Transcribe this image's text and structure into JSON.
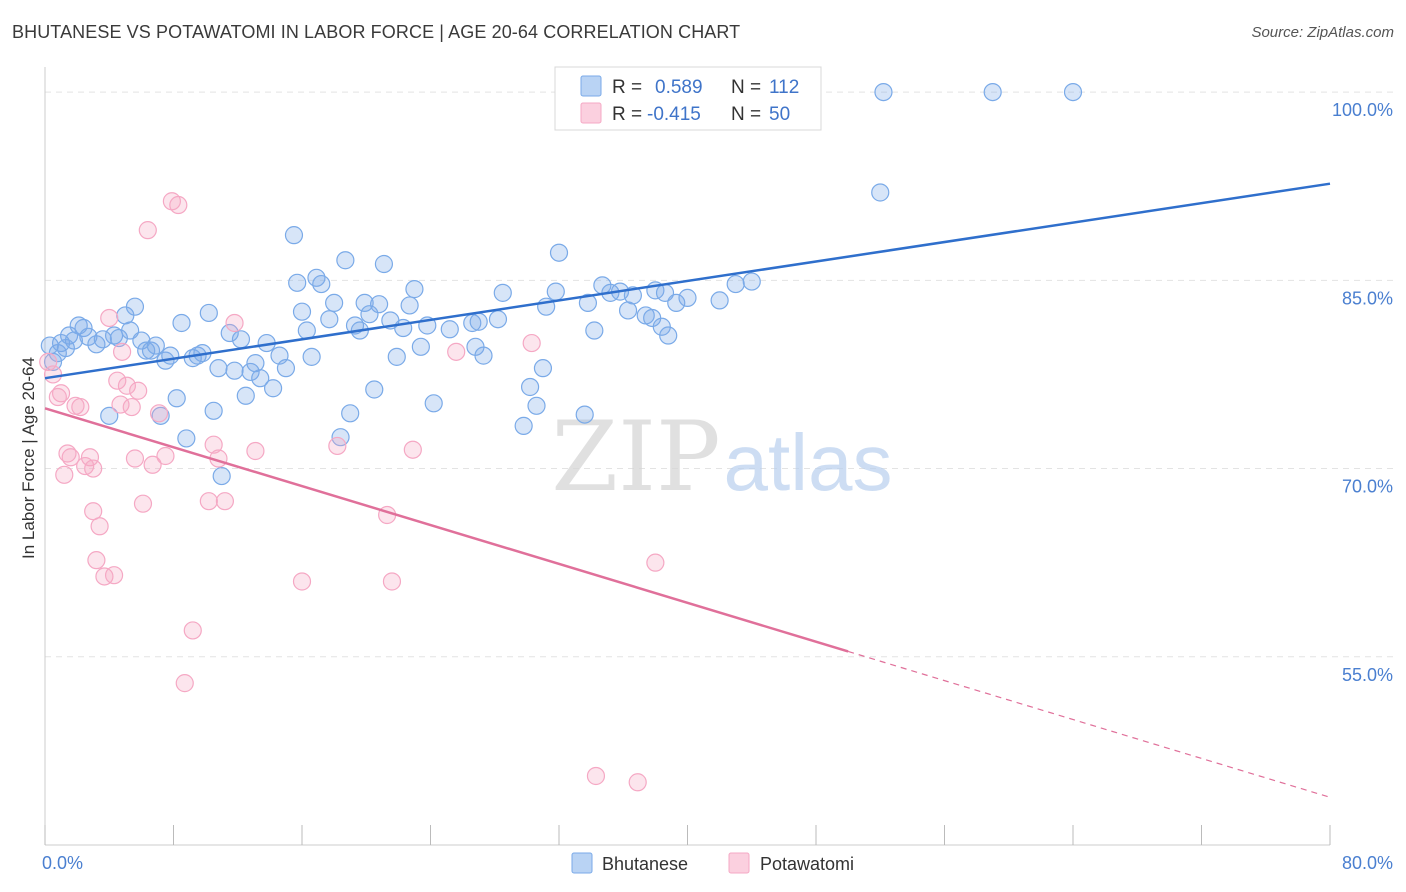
{
  "title": "BHUTANESE VS POTAWATOMI IN LABOR FORCE | AGE 20-64 CORRELATION CHART",
  "source": "Source: ZipAtlas.com",
  "watermark": {
    "zip": "ZIP",
    "atlas": "atlas"
  },
  "chart_data": {
    "type": "scatter",
    "xlabel": "",
    "ylabel": "In Labor Force | Age 20-64",
    "xlim": [
      0,
      80
    ],
    "ylim": [
      40,
      102
    ],
    "x_tick_labels": [
      "0.0%",
      "80.0%"
    ],
    "y_ticks": [
      100,
      85,
      70,
      55
    ],
    "y_tick_labels": [
      "100.0%",
      "85.0%",
      "70.0%",
      "55.0%"
    ],
    "grid": true,
    "legend_position": "top-center",
    "legend": [
      {
        "r_label": "R =",
        "r_value": "0.589",
        "n_label": "N =",
        "n_value": "112"
      },
      {
        "r_label": "R =",
        "r_value": "-0.415",
        "n_label": "N =",
        "n_value": "50"
      }
    ],
    "series": [
      {
        "name": "Bhutanese",
        "color": "#7aaae8",
        "line_color": "#2f6fcc",
        "trend": {
          "x0": 0,
          "y0": 77.2,
          "x1": 80,
          "y1": 92.7,
          "solid_until": 80
        },
        "points": [
          [
            0.3,
            79.8
          ],
          [
            0.5,
            78.5
          ],
          [
            0.8,
            79.2
          ],
          [
            1.0,
            80.0
          ],
          [
            1.3,
            79.6
          ],
          [
            1.5,
            80.6
          ],
          [
            1.8,
            80.2
          ],
          [
            2.1,
            81.4
          ],
          [
            2.4,
            81.2
          ],
          [
            2.7,
            80.5
          ],
          [
            3.2,
            79.9
          ],
          [
            3.6,
            80.3
          ],
          [
            4.0,
            74.2
          ],
          [
            4.3,
            80.6
          ],
          [
            4.6,
            80.4
          ],
          [
            5.0,
            82.2
          ],
          [
            5.3,
            81.0
          ],
          [
            5.6,
            82.9
          ],
          [
            6.0,
            80.2
          ],
          [
            6.3,
            79.4
          ],
          [
            6.6,
            79.4
          ],
          [
            6.9,
            79.8
          ],
          [
            7.2,
            74.2
          ],
          [
            7.5,
            78.6
          ],
          [
            7.8,
            79.0
          ],
          [
            8.2,
            75.6
          ],
          [
            8.5,
            81.6
          ],
          [
            8.8,
            72.4
          ],
          [
            9.2,
            78.8
          ],
          [
            9.5,
            79.0
          ],
          [
            9.8,
            79.2
          ],
          [
            10.2,
            82.4
          ],
          [
            10.5,
            74.6
          ],
          [
            10.8,
            78.0
          ],
          [
            11.0,
            69.4
          ],
          [
            11.5,
            80.8
          ],
          [
            11.8,
            77.8
          ],
          [
            12.2,
            80.3
          ],
          [
            12.5,
            75.8
          ],
          [
            12.8,
            77.7
          ],
          [
            13.1,
            78.4
          ],
          [
            13.4,
            77.2
          ],
          [
            13.8,
            80.0
          ],
          [
            14.2,
            76.4
          ],
          [
            14.6,
            79.0
          ],
          [
            15.0,
            78.0
          ],
          [
            15.5,
            88.6
          ],
          [
            15.7,
            84.8
          ],
          [
            16.0,
            82.5
          ],
          [
            16.3,
            81.0
          ],
          [
            16.6,
            78.9
          ],
          [
            16.9,
            85.2
          ],
          [
            17.2,
            84.7
          ],
          [
            17.7,
            81.9
          ],
          [
            18.0,
            83.2
          ],
          [
            18.4,
            72.5
          ],
          [
            18.7,
            86.6
          ],
          [
            19.0,
            74.4
          ],
          [
            19.3,
            81.4
          ],
          [
            19.6,
            81.0
          ],
          [
            19.9,
            83.2
          ],
          [
            20.2,
            82.3
          ],
          [
            20.5,
            76.3
          ],
          [
            20.8,
            83.1
          ],
          [
            21.1,
            86.3
          ],
          [
            21.5,
            81.8
          ],
          [
            21.9,
            78.9
          ],
          [
            22.3,
            81.2
          ],
          [
            22.7,
            83.0
          ],
          [
            23.0,
            84.3
          ],
          [
            23.4,
            79.7
          ],
          [
            23.8,
            81.4
          ],
          [
            24.2,
            75.2
          ],
          [
            25.2,
            81.1
          ],
          [
            26.6,
            81.6
          ],
          [
            26.8,
            79.7
          ],
          [
            27.0,
            81.7
          ],
          [
            27.3,
            79.0
          ],
          [
            28.2,
            81.9
          ],
          [
            28.5,
            84.0
          ],
          [
            29.8,
            73.4
          ],
          [
            30.2,
            76.5
          ],
          [
            30.6,
            75.0
          ],
          [
            31.0,
            78.0
          ],
          [
            31.2,
            82.9
          ],
          [
            31.8,
            84.1
          ],
          [
            32.0,
            87.2
          ],
          [
            33.6,
            74.3
          ],
          [
            33.8,
            83.2
          ],
          [
            34.2,
            81.0
          ],
          [
            34.7,
            84.6
          ],
          [
            35.2,
            84.0
          ],
          [
            35.8,
            84.1
          ],
          [
            36.3,
            82.6
          ],
          [
            36.6,
            83.8
          ],
          [
            37.4,
            82.2
          ],
          [
            37.8,
            82.0
          ],
          [
            38.0,
            84.2
          ],
          [
            38.4,
            81.3
          ],
          [
            38.6,
            84.0
          ],
          [
            38.8,
            80.6
          ],
          [
            39.3,
            83.2
          ],
          [
            40.0,
            83.6
          ],
          [
            42.0,
            83.4
          ],
          [
            43.0,
            84.7
          ],
          [
            44.0,
            84.9
          ],
          [
            52.0,
            92.0
          ],
          [
            52.2,
            100.0
          ],
          [
            59.0,
            100.0
          ],
          [
            64.0,
            100.0
          ]
        ]
      },
      {
        "name": "Potawatomi",
        "color": "#f5a8c4",
        "line_color": "#e0709a",
        "trend": {
          "x0": 0,
          "y0": 74.8,
          "x1": 80,
          "y1": 43.8,
          "solid_until": 50
        },
        "points": [
          [
            0.2,
            78.5
          ],
          [
            0.5,
            77.5
          ],
          [
            0.8,
            75.7
          ],
          [
            1.0,
            76.0
          ],
          [
            1.2,
            69.5
          ],
          [
            1.4,
            71.2
          ],
          [
            1.6,
            70.9
          ],
          [
            1.9,
            75.0
          ],
          [
            2.2,
            74.9
          ],
          [
            2.5,
            70.2
          ],
          [
            2.8,
            70.9
          ],
          [
            3.0,
            66.6
          ],
          [
            3.2,
            62.7
          ],
          [
            3.4,
            65.4
          ],
          [
            3.7,
            61.4
          ],
          [
            4.0,
            82.0
          ],
          [
            4.3,
            61.5
          ],
          [
            4.5,
            77.0
          ],
          [
            4.8,
            79.3
          ],
          [
            5.1,
            76.6
          ],
          [
            5.4,
            74.9
          ],
          [
            5.6,
            70.8
          ],
          [
            5.8,
            76.2
          ],
          [
            6.1,
            67.2
          ],
          [
            6.4,
            89.0
          ],
          [
            6.7,
            70.3
          ],
          [
            7.1,
            74.4
          ],
          [
            7.5,
            71.0
          ],
          [
            7.9,
            91.3
          ],
          [
            8.3,
            91.0
          ],
          [
            8.7,
            52.9
          ],
          [
            9.2,
            57.1
          ],
          [
            10.2,
            67.4
          ],
          [
            10.5,
            71.9
          ],
          [
            10.8,
            70.8
          ],
          [
            11.2,
            67.4
          ],
          [
            11.8,
            81.6
          ],
          [
            13.1,
            71.4
          ],
          [
            16.0,
            61.0
          ],
          [
            18.2,
            71.8
          ],
          [
            21.3,
            66.3
          ],
          [
            21.6,
            61.0
          ],
          [
            22.9,
            71.5
          ],
          [
            25.6,
            79.3
          ],
          [
            30.3,
            80.0
          ],
          [
            34.3,
            45.5
          ],
          [
            36.9,
            45.0
          ],
          [
            38.0,
            62.5
          ],
          [
            4.7,
            75.1
          ],
          [
            3.0,
            70.0
          ]
        ]
      }
    ]
  }
}
